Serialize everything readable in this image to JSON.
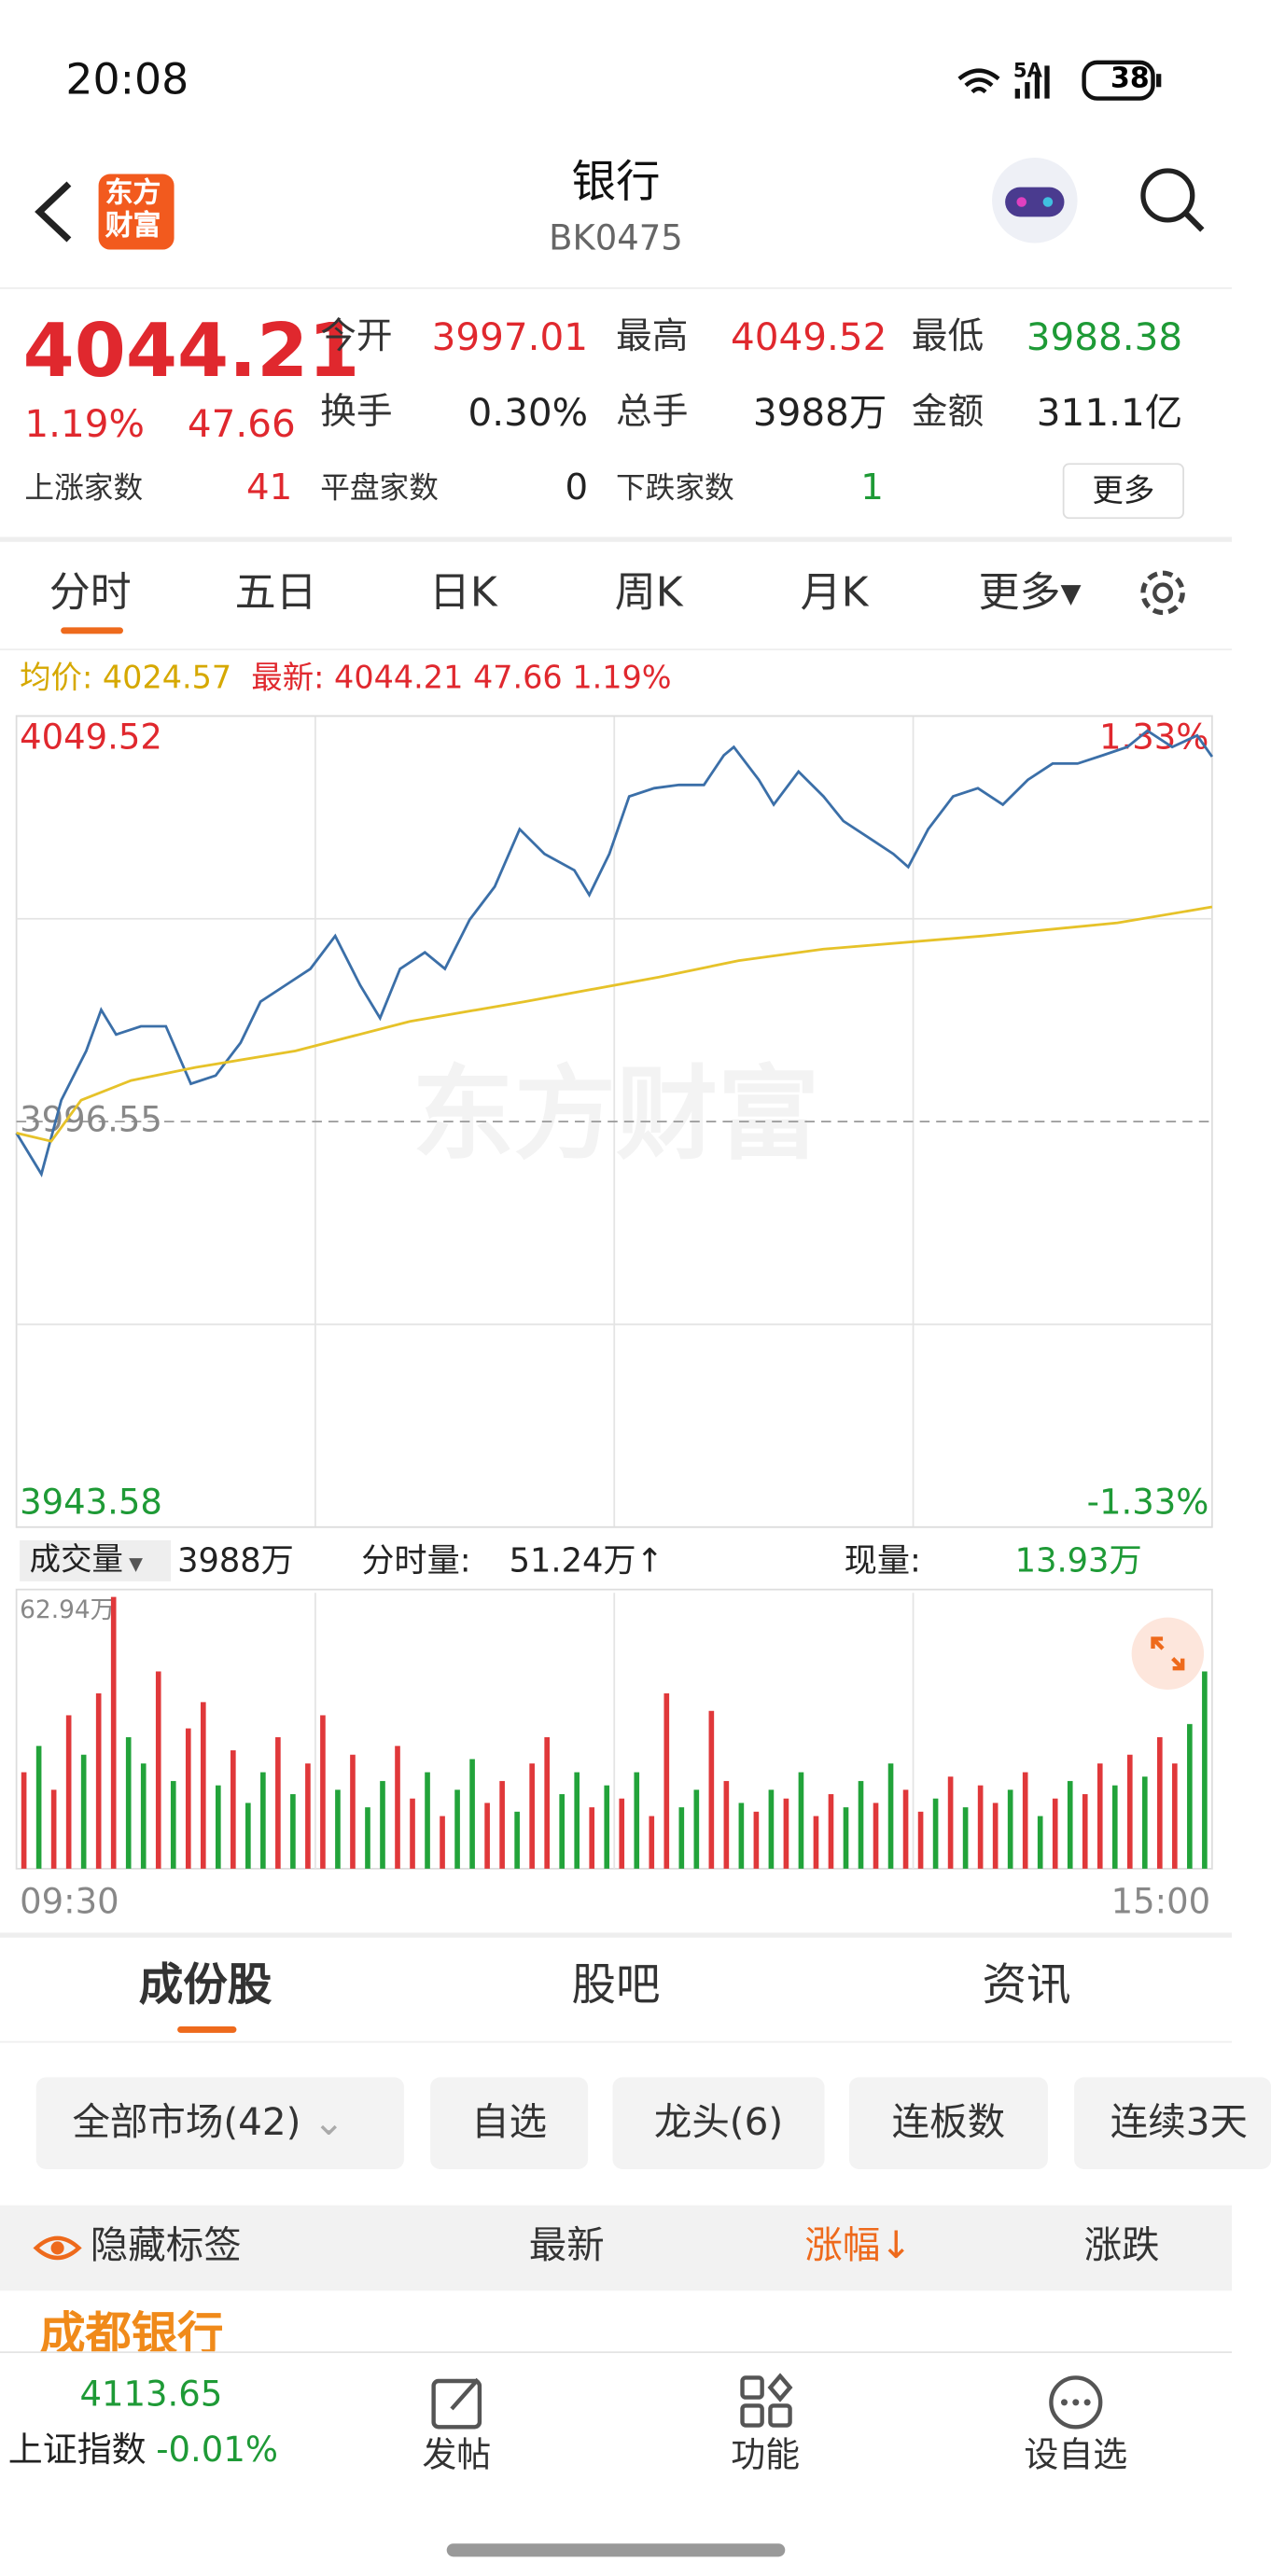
{
  "status": {
    "time": "20:08",
    "network": "5A",
    "battery": "38"
  },
  "header": {
    "title": "银行",
    "code": "BK0475",
    "logo": [
      "东方",
      "财富"
    ]
  },
  "quote": {
    "price": "4044.21",
    "pct": "1.19%",
    "change": "47.66",
    "stats": [
      {
        "label": "今开",
        "value": "3997.01"
      },
      {
        "label": "最高",
        "value": "4049.52"
      },
      {
        "label": "最低",
        "value": "3988.38"
      },
      {
        "label": "换手",
        "value": "0.30%"
      },
      {
        "label": "总手",
        "value": "3988万"
      },
      {
        "label": "金额",
        "value": "311.1亿"
      }
    ],
    "breadth": [
      {
        "label": "上涨家数",
        "value": "41"
      },
      {
        "label": "平盘家数",
        "value": "0"
      },
      {
        "label": "下跌家数",
        "value": "1"
      }
    ],
    "more": "更多"
  },
  "tabs": [
    "分时",
    "五日",
    "日K",
    "周K",
    "月K",
    "更多▾"
  ],
  "info": {
    "avg": "均价: 4024.57",
    "latest": "最新: 4044.21 47.66 1.19%"
  },
  "watermark": "东方财富",
  "volume_info": {
    "selector": "成交量",
    "total": "3988万",
    "minute_label": "分时量:",
    "minute": "51.24万↑",
    "current_label": "现量:",
    "current": "13.93万"
  },
  "sections": [
    "成份股",
    "股吧",
    "资讯"
  ],
  "filters": [
    "全部市场(42)",
    "自选",
    "龙头(6)",
    "连板数",
    "连续3天"
  ],
  "table": {
    "headers": [
      "隐藏标签",
      "最新",
      "涨幅↓",
      "涨跌"
    ],
    "rows": [
      [
        "成都银行"
      ]
    ]
  },
  "index": {
    "value": "4113.65",
    "name": "上证指数",
    "change": "-0.01%"
  },
  "nav": [
    "发帖",
    "功能",
    "设自选"
  ],
  "chart_data": [
    {
      "type": "line",
      "xlim": [
        0,
        240
      ],
      "xticks": [
        {
          "value": 0,
          "label": "09:30"
        },
        {
          "value": 240,
          "label": "15:00"
        }
      ],
      "ylim": [
        3943.58,
        4049.52
      ],
      "yticks": [
        4049.52,
        3996.55,
        3943.58
      ],
      "y2lim": [
        -1.33,
        1.33
      ],
      "y2ticks": [
        {
          "value": 1.33,
          "label": "1.33%"
        },
        {
          "value": -1.33,
          "label": "-1.33%"
        }
      ],
      "series": [
        {
          "color": "#3b6fa8",
          "x": [
            0,
            5,
            9,
            14,
            17,
            20,
            25,
            30,
            35,
            40,
            45,
            49,
            54,
            59,
            64,
            69,
            73,
            77,
            82,
            86,
            91,
            96,
            101,
            106,
            112,
            115,
            119,
            123,
            128,
            133,
            138,
            142,
            144,
            149,
            152,
            157,
            162,
            166,
            171,
            176,
            179,
            183,
            188,
            193,
            198,
            203,
            208,
            213,
            218,
            223,
            227,
            232,
            237,
            240
          ],
          "values": [
            3995.05,
            3989.69,
            3999.34,
            4005.77,
            4011.14,
            4007.92,
            4008.99,
            4008.99,
            4001.48,
            4002.56,
            4006.85,
            4012.21,
            4014.35,
            4016.5,
            4020.79,
            4014.35,
            4010.06,
            4016.5,
            4018.64,
            4016.5,
            4022.93,
            4027.22,
            4034.73,
            4031.51,
            4029.37,
            4026.15,
            4031.51,
            4039.02,
            4040.09,
            4040.52,
            4040.52,
            4044.38,
            4045.46,
            4041.17,
            4037.95,
            4042.24,
            4039.02,
            4035.8,
            4033.66,
            4031.51,
            4029.8,
            4034.73,
            4039.02,
            4040.09,
            4037.95,
            4041.17,
            4043.31,
            4043.31,
            4044.38,
            4045.46,
            4047.6,
            4045.46,
            4046.96,
            4044.21
          ]
        },
        {
          "color": "#e6c229",
          "x": [
            0,
            7,
            13,
            23,
            36,
            56,
            79,
            102,
            129,
            145,
            162,
            194,
            221,
            240
          ],
          "values": [
            3995.05,
            3993.98,
            3999.34,
            4001.91,
            4003.63,
            4005.77,
            4009.63,
            4012.21,
            4015.43,
            4017.57,
            4019.07,
            4020.79,
            4022.5,
            4024.57
          ]
        }
      ]
    },
    {
      "type": "bar",
      "ylim": [
        0,
        62.94
      ],
      "yticks": [
        {
          "value": 62.94,
          "label": "62.94万"
        }
      ],
      "up_color": "#e0383a",
      "down_color": "#22a33a",
      "values": [
        22,
        28,
        18,
        35,
        26,
        40,
        62,
        30,
        24,
        45,
        20,
        32,
        38,
        19,
        27,
        15,
        22,
        30,
        17,
        24,
        35,
        18,
        26,
        14,
        20,
        28,
        16,
        22,
        12,
        18,
        25,
        15,
        20,
        13,
        24,
        30,
        17,
        22,
        14,
        19,
        16,
        22,
        12,
        40,
        14,
        18,
        36,
        20,
        15,
        13,
        18,
        16,
        22,
        12,
        17,
        14,
        20,
        15,
        24,
        18,
        13,
        16,
        21,
        14,
        19,
        15,
        18,
        22,
        12,
        16,
        20,
        17,
        24,
        19,
        26,
        21,
        30,
        24,
        33,
        45
      ],
      "up": [
        true,
        false,
        true,
        true,
        false,
        true,
        true,
        false,
        false,
        true,
        false,
        true,
        true,
        false,
        true,
        false,
        false,
        true,
        false,
        true,
        true,
        false,
        true,
        false,
        false,
        true,
        true,
        false,
        true,
        false,
        false,
        true,
        true,
        false,
        true,
        true,
        false,
        false,
        true,
        false,
        true,
        false,
        true,
        true,
        false,
        false,
        true,
        true,
        false,
        true,
        false,
        true,
        false,
        true,
        true,
        false,
        false,
        true,
        false,
        true,
        true,
        false,
        true,
        false,
        true,
        true,
        false,
        true,
        false,
        true,
        false,
        true,
        true,
        false,
        true,
        false,
        true,
        true,
        false,
        false
      ]
    }
  ]
}
